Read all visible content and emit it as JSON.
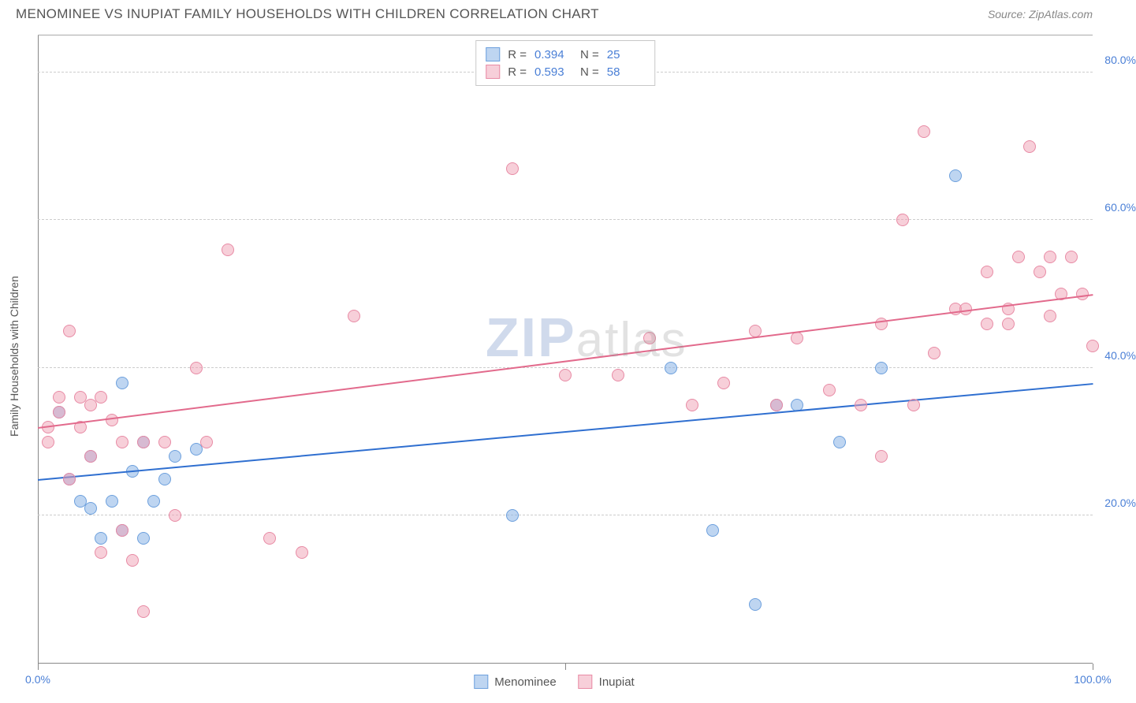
{
  "header": {
    "title": "MENOMINEE VS INUPIAT FAMILY HOUSEHOLDS WITH CHILDREN CORRELATION CHART",
    "source_label": "Source: ZipAtlas.com"
  },
  "chart": {
    "type": "scatter",
    "y_axis_label": "Family Households with Children",
    "background_color": "#ffffff",
    "grid_color": "#cccccc",
    "axis_color": "#888888",
    "tick_label_color": "#4a7fd6",
    "xlim": [
      0,
      100
    ],
    "ylim": [
      0,
      85
    ],
    "y_gridlines": [
      20,
      40,
      60,
      80
    ],
    "y_tick_labels": [
      "20.0%",
      "40.0%",
      "60.0%",
      "80.0%"
    ],
    "x_tick_positions": [
      0,
      50,
      100
    ],
    "x_tick_labels": [
      "0.0%",
      "",
      "100.0%"
    ],
    "watermark": {
      "z": "ZIP",
      "rest": "atlas"
    },
    "series": [
      {
        "name": "Menominee",
        "marker_color_fill": "rgba(137,179,230,0.55)",
        "marker_color_stroke": "#6da0dd",
        "marker_radius": 8,
        "trend_color": "#2f6fd0",
        "trend": {
          "x1": 0,
          "y1": 25,
          "x2": 100,
          "y2": 38
        },
        "R": "0.394",
        "N": "25",
        "points": [
          [
            2,
            34
          ],
          [
            3,
            25
          ],
          [
            4,
            22
          ],
          [
            5,
            28
          ],
          [
            5,
            21
          ],
          [
            6,
            17
          ],
          [
            7,
            22
          ],
          [
            8,
            18
          ],
          [
            8,
            38
          ],
          [
            9,
            26
          ],
          [
            10,
            17
          ],
          [
            10,
            30
          ],
          [
            11,
            22
          ],
          [
            12,
            25
          ],
          [
            13,
            28
          ],
          [
            15,
            29
          ],
          [
            45,
            20
          ],
          [
            64,
            18
          ],
          [
            68,
            8
          ],
          [
            70,
            35
          ],
          [
            72,
            35
          ],
          [
            76,
            30
          ],
          [
            80,
            40
          ],
          [
            87,
            66
          ],
          [
            60,
            40
          ]
        ]
      },
      {
        "name": "Inupiat",
        "marker_color_fill": "rgba(240,160,180,0.5)",
        "marker_color_stroke": "#e88ba5",
        "marker_radius": 8,
        "trend_color": "#e26a8c",
        "trend": {
          "x1": 0,
          "y1": 32,
          "x2": 100,
          "y2": 50
        },
        "R": "0.593",
        "N": "58",
        "points": [
          [
            1,
            32
          ],
          [
            1,
            30
          ],
          [
            2,
            36
          ],
          [
            2,
            34
          ],
          [
            3,
            45
          ],
          [
            3,
            25
          ],
          [
            4,
            36
          ],
          [
            4,
            32
          ],
          [
            5,
            35
          ],
          [
            5,
            28
          ],
          [
            6,
            36
          ],
          [
            6,
            15
          ],
          [
            7,
            33
          ],
          [
            8,
            30
          ],
          [
            8,
            18
          ],
          [
            9,
            14
          ],
          [
            10,
            30
          ],
          [
            10,
            7
          ],
          [
            12,
            30
          ],
          [
            13,
            20
          ],
          [
            15,
            40
          ],
          [
            16,
            30
          ],
          [
            18,
            56
          ],
          [
            22,
            17
          ],
          [
            25,
            15
          ],
          [
            30,
            47
          ],
          [
            45,
            67
          ],
          [
            50,
            39
          ],
          [
            55,
            39
          ],
          [
            58,
            44
          ],
          [
            62,
            35
          ],
          [
            65,
            38
          ],
          [
            68,
            45
          ],
          [
            70,
            35
          ],
          [
            72,
            44
          ],
          [
            75,
            37
          ],
          [
            78,
            35
          ],
          [
            80,
            46
          ],
          [
            80,
            28
          ],
          [
            82,
            60
          ],
          [
            83,
            35
          ],
          [
            84,
            72
          ],
          [
            85,
            42
          ],
          [
            87,
            48
          ],
          [
            88,
            48
          ],
          [
            90,
            46
          ],
          [
            90,
            53
          ],
          [
            92,
            48
          ],
          [
            92,
            46
          ],
          [
            93,
            55
          ],
          [
            94,
            70
          ],
          [
            95,
            53
          ],
          [
            96,
            47
          ],
          [
            96,
            55
          ],
          [
            97,
            50
          ],
          [
            98,
            55
          ],
          [
            99,
            50
          ],
          [
            100,
            43
          ]
        ]
      }
    ]
  },
  "legend_top": {
    "R_label": "R =",
    "N_label": "N ="
  },
  "legend_bottom": {
    "items": [
      "Menominee",
      "Inupiat"
    ]
  }
}
